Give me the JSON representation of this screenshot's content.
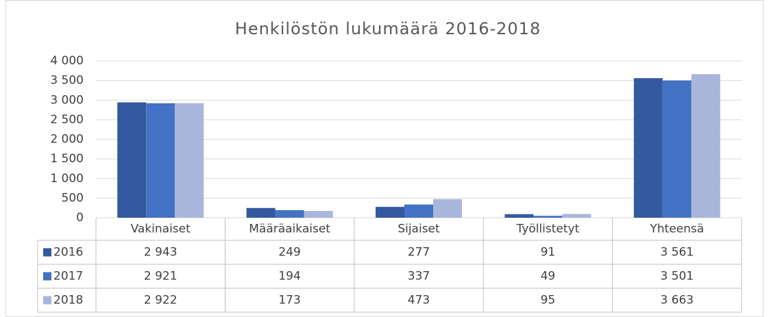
{
  "chart_data": {
    "type": "bar",
    "title": "Henkilöstön lukumäärä 2016-2018",
    "categories": [
      "Vakinaiset",
      "Määräaikaiset",
      "Sijaiset",
      "Työllistetyt",
      "Yhteensä"
    ],
    "series": [
      {
        "name": "2016",
        "color": "#335aa1",
        "values": [
          2943,
          249,
          277,
          91,
          3561
        ],
        "value_labels": [
          "2 943",
          "249",
          "277",
          "91",
          "3 561"
        ]
      },
      {
        "name": "2017",
        "color": "#4472c4",
        "values": [
          2921,
          194,
          337,
          49,
          3501
        ],
        "value_labels": [
          "2 921",
          "194",
          "337",
          "49",
          "3 501"
        ]
      },
      {
        "name": "2018",
        "color": "#a9b6dc",
        "values": [
          2922,
          173,
          473,
          95,
          3663
        ],
        "value_labels": [
          "2 922",
          "173",
          "473",
          "95",
          "3 663"
        ]
      }
    ],
    "ylim": [
      0,
      4000
    ],
    "yticks": [
      0,
      500,
      {
        "value": 1000,
        "label": "1 000"
      },
      {
        "value": 1500,
        "label": "1 500"
      },
      {
        "value": 2000,
        "label": "2 000"
      },
      {
        "value": 2500,
        "label": "2 500"
      },
      {
        "value": 3000,
        "label": "3 000"
      },
      {
        "value": 3500,
        "label": "3 500"
      },
      {
        "value": 4000,
        "label": "4 000"
      }
    ],
    "grid": true
  }
}
